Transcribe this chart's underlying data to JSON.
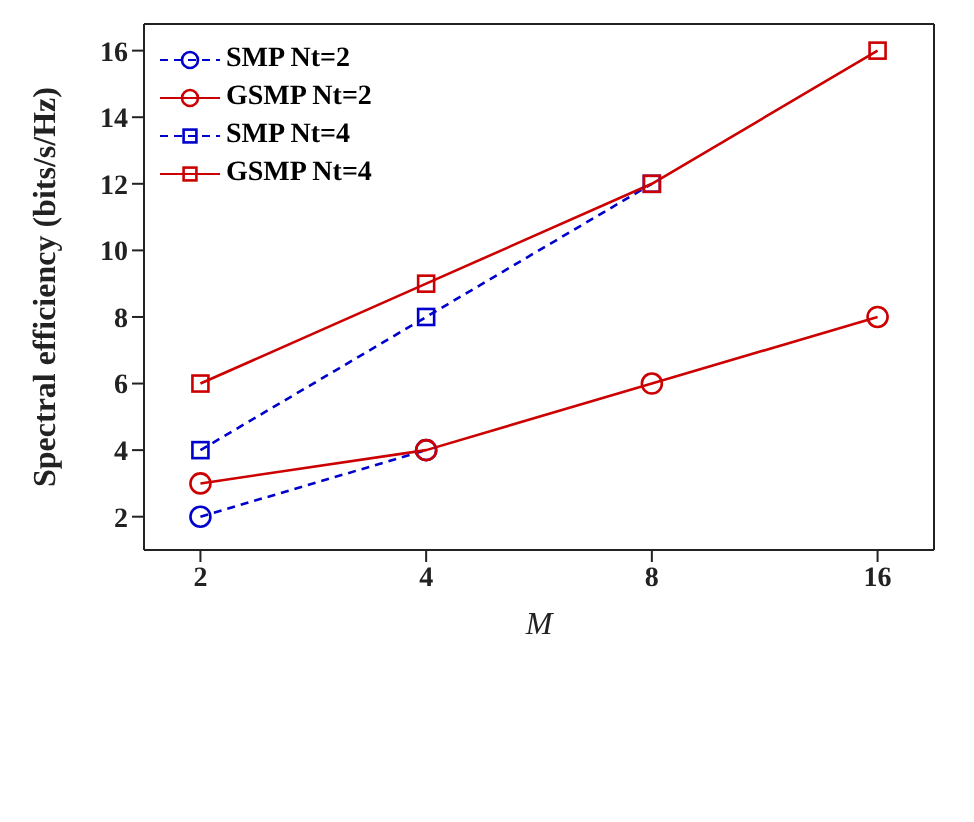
{
  "chart_data": {
    "type": "line",
    "xlabel": "M",
    "ylabel": "Spectral efficiency (bits/s/Hz)",
    "categories": [
      "2",
      "4",
      "8",
      "16"
    ],
    "ylim": [
      1,
      16.8
    ],
    "yticks": [
      2,
      4,
      6,
      8,
      10,
      12,
      14,
      16
    ],
    "legend": "top left",
    "series": [
      {
        "name": "SMP Nt=2",
        "color": "#0000cc",
        "values": [
          2,
          4,
          null,
          null
        ],
        "marker": "circle",
        "line_style": "dashed"
      },
      {
        "name": "GSMP Nt=2",
        "color": "#cc0000",
        "values": [
          3,
          4,
          6,
          8
        ],
        "marker": "circle",
        "line_style": "solid"
      },
      {
        "name": "SMP Nt=4",
        "color": "#0000cc",
        "values": [
          4,
          8,
          12,
          null
        ],
        "marker": "square",
        "line_style": "dashed"
      },
      {
        "name": "GSMP Nt=4",
        "color": "#cc0000",
        "values": [
          6,
          9,
          12,
          16
        ],
        "marker": "square",
        "line_style": "solid"
      }
    ]
  }
}
